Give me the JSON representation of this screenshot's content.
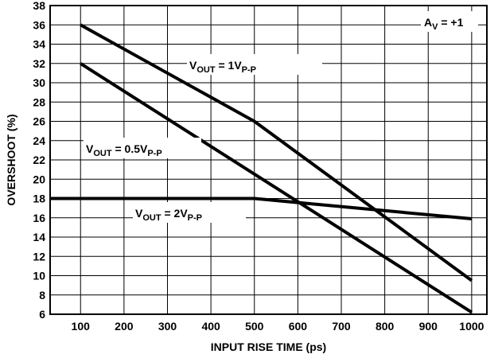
{
  "chart_data": {
    "type": "line",
    "title": "",
    "xlabel": "INPUT RISE TIME (ps)",
    "ylabel": "OVERSHOOT (%)",
    "xlim": [
      30,
      1035
    ],
    "ylim": [
      6,
      38
    ],
    "x_ticks": [
      100,
      200,
      300,
      400,
      500,
      600,
      700,
      800,
      900,
      1000
    ],
    "y_ticks": [
      6,
      8,
      10,
      12,
      14,
      16,
      18,
      20,
      22,
      24,
      26,
      28,
      30,
      32,
      34,
      36,
      38
    ],
    "grid": true,
    "series": [
      {
        "name": "VOUT = 1VP-P",
        "label_parts": {
          "main": "V",
          "sub1": "OUT",
          "mid": " = 1V",
          "sub2": "P-P"
        },
        "x": [
          100,
          500,
          1000
        ],
        "y": [
          36,
          26,
          9.5
        ]
      },
      {
        "name": "VOUT = 0.5VP-P",
        "label_parts": {
          "main": "V",
          "sub1": "OUT",
          "mid": " = 0.5V",
          "sub2": "P-P"
        },
        "x": [
          100,
          1000
        ],
        "y": [
          32,
          6.2
        ]
      },
      {
        "name": "VOUT = 2VP-P",
        "label_parts": {
          "main": "V",
          "sub1": "OUT",
          "mid": " = 2V",
          "sub2": "P-P"
        },
        "x": [
          30,
          500,
          1000
        ],
        "y": [
          18,
          18,
          15.9
        ]
      }
    ],
    "annotation": {
      "main": "A",
      "sub": "V",
      "rest": " = +1"
    }
  }
}
